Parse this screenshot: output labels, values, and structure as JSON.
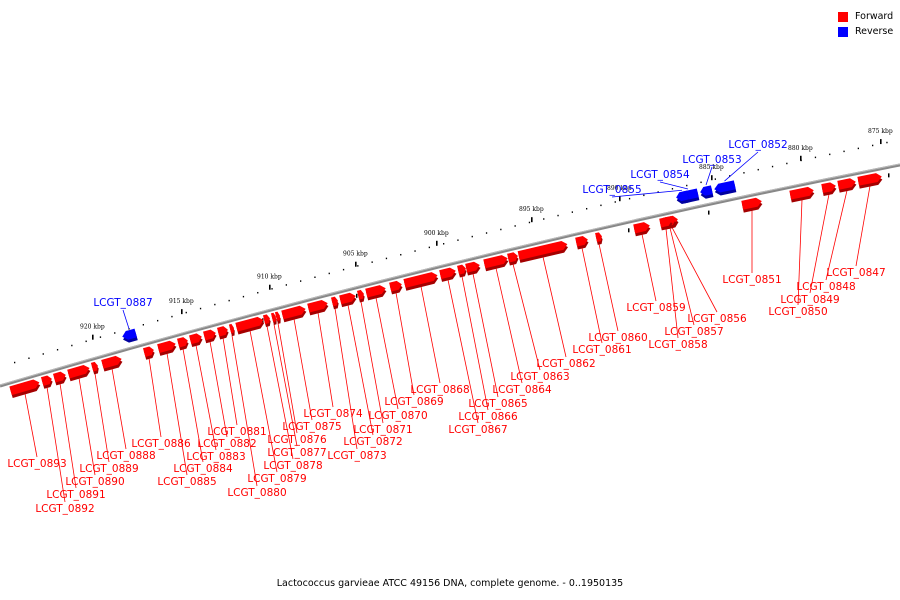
{
  "caption": "Lactococcus garvieae ATCC 49156 DNA, complete genome. - 0..1950135",
  "legend": [
    {
      "label": "Forward",
      "color": "#ff0000"
    },
    {
      "label": "Reverse",
      "color": "#0000ff"
    }
  ],
  "colors": {
    "forward": "#ff0000",
    "reverse": "#0000ff",
    "backbone": "#888888"
  },
  "scale_labels": [
    "875 kbp",
    "880 kbp",
    "885 kbp",
    "890 kbp",
    "895 kbp",
    "900 kbp",
    "905 kbp",
    "910 kbp",
    "915 kbp",
    "920 kbp"
  ],
  "genes": [
    {
      "label": "LCGT_0847",
      "strand": "forward"
    },
    {
      "label": "LCGT_0848",
      "strand": "forward"
    },
    {
      "label": "LCGT_0849",
      "strand": "forward"
    },
    {
      "label": "LCGT_0850",
      "strand": "forward"
    },
    {
      "label": "LCGT_0851",
      "strand": "forward"
    },
    {
      "label": "LCGT_0852",
      "strand": "reverse"
    },
    {
      "label": "LCGT_0853",
      "strand": "reverse"
    },
    {
      "label": "LCGT_0854",
      "strand": "reverse"
    },
    {
      "label": "LCGT_0855",
      "strand": "reverse"
    },
    {
      "label": "LCGT_0856",
      "strand": "forward"
    },
    {
      "label": "LCGT_0857",
      "strand": "forward"
    },
    {
      "label": "LCGT_0858",
      "strand": "forward"
    },
    {
      "label": "LCGT_0859",
      "strand": "forward"
    },
    {
      "label": "LCGT_0860",
      "strand": "forward"
    },
    {
      "label": "LCGT_0861",
      "strand": "forward"
    },
    {
      "label": "LCGT_0862",
      "strand": "forward"
    },
    {
      "label": "LCGT_0863",
      "strand": "forward"
    },
    {
      "label": "LCGT_0864",
      "strand": "forward"
    },
    {
      "label": "LCGT_0865",
      "strand": "forward"
    },
    {
      "label": "LCGT_0866",
      "strand": "forward"
    },
    {
      "label": "LCGT_0867",
      "strand": "forward"
    },
    {
      "label": "LCGT_0868",
      "strand": "forward"
    },
    {
      "label": "LCGT_0869",
      "strand": "forward"
    },
    {
      "label": "LCGT_0870",
      "strand": "forward"
    },
    {
      "label": "LCGT_0871",
      "strand": "forward"
    },
    {
      "label": "LCGT_0872",
      "strand": "forward"
    },
    {
      "label": "LCGT_0873",
      "strand": "forward"
    },
    {
      "label": "LCGT_0874",
      "strand": "forward"
    },
    {
      "label": "LCGT_0875",
      "strand": "forward"
    },
    {
      "label": "LCGT_0876",
      "strand": "forward"
    },
    {
      "label": "LCGT_0877",
      "strand": "forward"
    },
    {
      "label": "LCGT_0878",
      "strand": "forward"
    },
    {
      "label": "LCGT_0879",
      "strand": "forward"
    },
    {
      "label": "LCGT_0880",
      "strand": "forward"
    },
    {
      "label": "LCGT_0881",
      "strand": "forward"
    },
    {
      "label": "LCGT_0882",
      "strand": "forward"
    },
    {
      "label": "LCGT_0883",
      "strand": "forward"
    },
    {
      "label": "LCGT_0884",
      "strand": "forward"
    },
    {
      "label": "LCGT_0885",
      "strand": "forward"
    },
    {
      "label": "LCGT_0886",
      "strand": "forward"
    },
    {
      "label": "LCGT_0887",
      "strand": "reverse"
    },
    {
      "label": "LCGT_0888",
      "strand": "forward"
    },
    {
      "label": "LCGT_0889",
      "strand": "forward"
    },
    {
      "label": "LCGT_0890",
      "strand": "forward"
    },
    {
      "label": "LCGT_0891",
      "strand": "forward"
    },
    {
      "label": "LCGT_0892",
      "strand": "forward"
    },
    {
      "label": "LCGT_0893",
      "strand": "forward"
    }
  ]
}
